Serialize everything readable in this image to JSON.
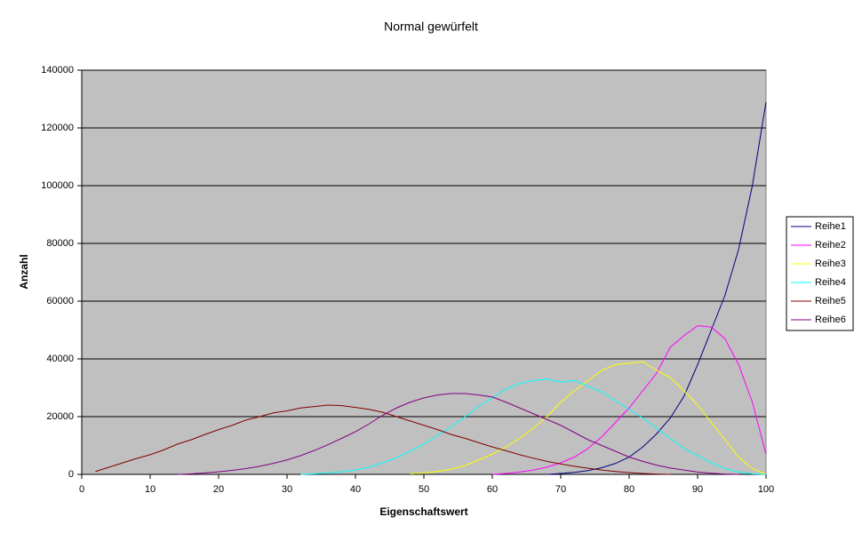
{
  "chart_data": {
    "type": "line",
    "title": "Normal gewürfelt",
    "x_label": "Eigenschaftswert",
    "y_label": "Anzahl",
    "x": [
      0,
      2,
      4,
      6,
      8,
      10,
      12,
      14,
      16,
      18,
      20,
      22,
      24,
      26,
      28,
      30,
      32,
      34,
      36,
      38,
      40,
      42,
      44,
      46,
      48,
      50,
      52,
      54,
      56,
      58,
      60,
      62,
      64,
      66,
      68,
      70,
      72,
      74,
      76,
      78,
      80,
      82,
      84,
      86,
      88,
      90,
      92,
      94,
      96,
      98,
      100
    ],
    "xlim": [
      0,
      100
    ],
    "xticks": [
      0,
      10,
      20,
      30,
      40,
      50,
      60,
      70,
      80,
      90,
      100
    ],
    "ylim": [
      0,
      140000
    ],
    "yticks": [
      0,
      20000,
      40000,
      60000,
      80000,
      100000,
      120000,
      140000
    ],
    "grid": true,
    "legend": "right",
    "series": [
      {
        "name": "Reihe1",
        "color": "#000080",
        "values": [
          null,
          null,
          null,
          null,
          null,
          null,
          null,
          null,
          null,
          null,
          null,
          null,
          null,
          null,
          null,
          null,
          null,
          null,
          null,
          null,
          null,
          null,
          null,
          null,
          null,
          null,
          null,
          null,
          null,
          null,
          null,
          null,
          null,
          null,
          0,
          300,
          700,
          1300,
          2300,
          3800,
          6000,
          9500,
          14000,
          19500,
          27000,
          38000,
          50000,
          62000,
          78000,
          100000,
          129000
        ]
      },
      {
        "name": "Reihe2",
        "color": "#ff00ff",
        "values": [
          null,
          null,
          null,
          null,
          null,
          null,
          null,
          null,
          null,
          null,
          null,
          null,
          null,
          null,
          null,
          null,
          null,
          null,
          null,
          null,
          null,
          null,
          null,
          null,
          null,
          null,
          null,
          null,
          null,
          null,
          0,
          300,
          800,
          1500,
          2500,
          4000,
          6000,
          9000,
          13000,
          18000,
          23000,
          29000,
          35000,
          44000,
          48000,
          51500,
          51000,
          47000,
          38000,
          25000,
          7000
        ]
      },
      {
        "name": "Reihe3",
        "color": "#ffff00",
        "values": [
          null,
          null,
          null,
          null,
          null,
          null,
          null,
          null,
          null,
          null,
          null,
          null,
          null,
          null,
          null,
          null,
          null,
          null,
          null,
          null,
          null,
          null,
          null,
          null,
          200,
          500,
          1000,
          1800,
          3000,
          5000,
          7000,
          9500,
          12500,
          16000,
          20000,
          25000,
          29000,
          32500,
          36000,
          38000,
          38500,
          39000,
          36000,
          33500,
          29000,
          24000,
          18000,
          12000,
          6000,
          2000,
          0
        ]
      },
      {
        "name": "Reihe4",
        "color": "#00ffff",
        "values": [
          null,
          null,
          null,
          null,
          null,
          null,
          null,
          null,
          null,
          null,
          null,
          null,
          null,
          null,
          null,
          null,
          0,
          200,
          500,
          900,
          1500,
          2500,
          4000,
          5800,
          8000,
          10500,
          13500,
          16500,
          20000,
          23500,
          26500,
          29500,
          31500,
          32500,
          33000,
          32000,
          32500,
          30500,
          28500,
          25500,
          22500,
          19500,
          16000,
          12500,
          9000,
          6500,
          4000,
          2000,
          800,
          200,
          0
        ]
      },
      {
        "name": "Reihe5",
        "color": "#800000",
        "values": [
          null,
          1000,
          2500,
          4000,
          5500,
          6800,
          8500,
          10500,
          12000,
          13800,
          15500,
          17000,
          18800,
          20000,
          21300,
          22000,
          23000,
          23500,
          24000,
          23800,
          23200,
          22500,
          21500,
          20000,
          18500,
          17000,
          15500,
          13800,
          12500,
          11000,
          9500,
          8200,
          6800,
          5600,
          4500,
          3600,
          2800,
          2100,
          1500,
          1000,
          600,
          300,
          100,
          0,
          null,
          null,
          null,
          null,
          null,
          null,
          null
        ]
      },
      {
        "name": "Reihe6",
        "color": "#800080",
        "values": [
          null,
          null,
          null,
          null,
          null,
          null,
          null,
          0,
          200,
          500,
          900,
          1400,
          2000,
          2800,
          3800,
          5000,
          6500,
          8300,
          10300,
          12500,
          14800,
          17500,
          20500,
          23000,
          25000,
          26500,
          27500,
          28000,
          28000,
          27500,
          26800,
          25000,
          23000,
          21000,
          19000,
          17000,
          14500,
          12000,
          10000,
          8000,
          6000,
          4500,
          3200,
          2200,
          1500,
          800,
          400,
          100,
          0,
          null,
          null
        ]
      }
    ]
  }
}
